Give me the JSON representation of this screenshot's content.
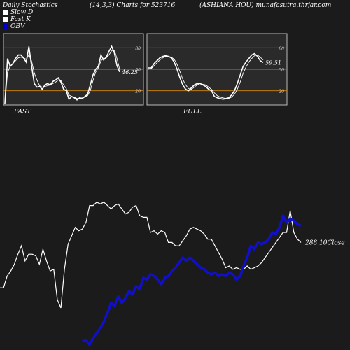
{
  "header": {
    "title": "Daily Stochastics",
    "params": "(14,3,3) Charts for 523716",
    "stock": "(ASHIANA HOU) munafasutra.thrjar.com"
  },
  "legend": [
    {
      "label": "Slow  D",
      "color": "#ffffff"
    },
    {
      "label": "Fast K",
      "color": "#ffffff"
    },
    {
      "label": "OBV",
      "color": "#0000cc"
    }
  ],
  "colors": {
    "background": "#1c1b1b",
    "panel": "#2a2a2a",
    "level_line": "#c07a10",
    "obv": "#1010c8",
    "price": "#ffffff"
  },
  "chart_data": [
    {
      "type": "line",
      "title": "FAST",
      "ylim": [
        0,
        100
      ],
      "yticks": [
        20,
        50,
        80
      ],
      "levels": [
        20,
        50,
        80
      ],
      "value_label": "46.25",
      "series": [
        {
          "name": "Fast K",
          "values": [
            2,
            65,
            54,
            58,
            65,
            70,
            70,
            66,
            60,
            82,
            55,
            30,
            25,
            26,
            22,
            28,
            30,
            28,
            33,
            35,
            38,
            32,
            22,
            20,
            8,
            12,
            10,
            7,
            10,
            9,
            12,
            15,
            28,
            42,
            50,
            54,
            70,
            63,
            67,
            75,
            82,
            73,
            55,
            46.25
          ]
        },
        {
          "name": "Slow D",
          "values": [
            2,
            45,
            55,
            58,
            62,
            66,
            67,
            66,
            64,
            70,
            62,
            45,
            35,
            27,
            25,
            26,
            27,
            28,
            30,
            32,
            35,
            34,
            28,
            23,
            14,
            12,
            11,
            9,
            9,
            10,
            11,
            13,
            20,
            34,
            46,
            52,
            62,
            65,
            66,
            70,
            76,
            77,
            65,
            50
          ]
        }
      ]
    },
    {
      "type": "line",
      "title": "FULL",
      "ylim": [
        0,
        100
      ],
      "yticks": [
        20,
        50,
        80
      ],
      "levels": [
        20,
        50,
        80
      ],
      "value_label": "59.51",
      "series": [
        {
          "name": "Full K",
          "values": [
            52,
            52,
            58,
            62,
            66,
            68,
            69,
            68,
            66,
            60,
            50,
            38,
            28,
            22,
            20,
            24,
            28,
            30,
            30,
            28,
            26,
            22,
            20,
            12,
            10,
            9,
            8,
            9,
            10,
            14,
            20,
            30,
            42,
            54,
            60,
            65,
            70,
            72,
            68,
            62,
            59.51
          ]
        },
        {
          "name": "Full D",
          "values": [
            50,
            51,
            55,
            59,
            63,
            66,
            68,
            68,
            67,
            64,
            57,
            47,
            36,
            28,
            23,
            22,
            25,
            28,
            30,
            29,
            28,
            25,
            22,
            17,
            13,
            11,
            10,
            9,
            9,
            11,
            15,
            22,
            32,
            44,
            53,
            60,
            65,
            69,
            70,
            67,
            63
          ]
        }
      ]
    },
    {
      "type": "line",
      "ylim": [
        0,
        100
      ],
      "value_label": "288.10Close",
      "series": [
        {
          "name": "Price",
          "values": [
            37,
            37,
            44,
            47,
            51,
            57,
            62,
            53,
            57,
            57,
            56,
            51,
            60,
            53,
            47,
            48,
            30,
            25,
            48,
            63,
            68,
            73,
            71,
            72,
            76,
            86,
            86,
            88,
            87,
            88,
            86,
            84,
            86,
            87,
            84,
            81,
            82,
            85,
            86,
            80,
            79,
            79,
            70,
            71,
            69,
            71,
            70,
            64,
            64,
            62,
            62,
            65,
            68,
            72,
            73,
            72,
            71,
            69,
            66,
            66,
            62,
            58,
            54,
            49,
            50,
            48,
            49,
            48,
            48,
            50,
            48,
            49,
            50,
            52,
            55,
            58,
            61,
            64,
            67,
            70,
            70,
            83,
            70,
            66,
            64
          ]
        },
        {
          "name": "OBV",
          "values": [
            null,
            null,
            null,
            null,
            null,
            null,
            null,
            null,
            null,
            null,
            null,
            null,
            null,
            null,
            null,
            null,
            null,
            null,
            null,
            null,
            null,
            null,
            null,
            5,
            6,
            3,
            7,
            10,
            13,
            17,
            22,
            28,
            26,
            32,
            28,
            31,
            35,
            33,
            38,
            36,
            43,
            42,
            45,
            44,
            42,
            39,
            43,
            44,
            47,
            49,
            52,
            55,
            53,
            55,
            53,
            51,
            49,
            48,
            46,
            45,
            46,
            44,
            45,
            44,
            46,
            45,
            42,
            44,
            50,
            55,
            62,
            60,
            64,
            63,
            64,
            66,
            70,
            69,
            73,
            80,
            76,
            78,
            77,
            75,
            74
          ]
        }
      ]
    }
  ]
}
